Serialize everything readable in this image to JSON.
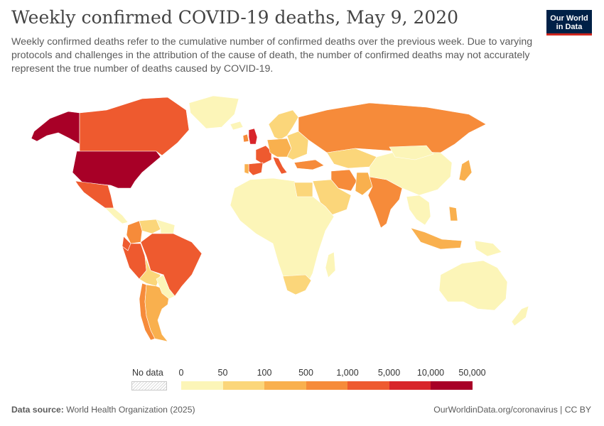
{
  "header": {
    "title": "Weekly confirmed COVID-19 deaths, May 9, 2020",
    "subtitle": "Weekly confirmed deaths refer to the cumulative number of confirmed deaths over the previous week. Due to varying protocols and challenges in the attribution of the cause of death, the number of confirmed deaths may not accurately represent the true number of deaths caused by COVID-19."
  },
  "logo": {
    "line1": "Our World",
    "line2": "in Data"
  },
  "legend": {
    "no_data_label": "No data",
    "ticks": [
      "0",
      "50",
      "100",
      "500",
      "1,000",
      "5,000",
      "10,000",
      "50,000"
    ],
    "colors": [
      "#fcf5b8",
      "#fbd67a",
      "#f9b04e",
      "#f68b3a",
      "#ee5a2f",
      "#d8252a",
      "#a80027"
    ]
  },
  "map": {
    "regions": [
      {
        "name": "Alaska",
        "color": "#a80027"
      },
      {
        "name": "Canada",
        "color": "#ee5a2f"
      },
      {
        "name": "United States",
        "color": "#a80027"
      },
      {
        "name": "Greenland",
        "color": "#fcf5b8"
      },
      {
        "name": "Mexico",
        "color": "#ee5a2f"
      },
      {
        "name": "Central America",
        "color": "#fcf5b8"
      },
      {
        "name": "Colombia",
        "color": "#f68b3a"
      },
      {
        "name": "Venezuela",
        "color": "#fbd67a"
      },
      {
        "name": "Guianas",
        "color": "#fcf5b8"
      },
      {
        "name": "Ecuador",
        "color": "#ee5a2f"
      },
      {
        "name": "Peru",
        "color": "#ee5a2f"
      },
      {
        "name": "Brazil",
        "color": "#ee5a2f"
      },
      {
        "name": "Bolivia",
        "color": "#fbd67a"
      },
      {
        "name": "Chile",
        "color": "#f68b3a"
      },
      {
        "name": "Argentina",
        "color": "#f9b04e"
      },
      {
        "name": "Uruguay and Paraguay",
        "color": "#fcf5b8"
      },
      {
        "name": "Iceland",
        "color": "#fcf5b8"
      },
      {
        "name": "Ireland",
        "color": "#f68b3a"
      },
      {
        "name": "United Kingdom",
        "color": "#d8252a"
      },
      {
        "name": "Scandinavia",
        "color": "#fbd67a"
      },
      {
        "name": "France",
        "color": "#ee5a2f"
      },
      {
        "name": "Spain",
        "color": "#ee5a2f"
      },
      {
        "name": "Portugal",
        "color": "#f9b04e"
      },
      {
        "name": "Italy",
        "color": "#ee5a2f"
      },
      {
        "name": "Central Europe",
        "color": "#f9b04e"
      },
      {
        "name": "Eastern Europe",
        "color": "#fbd67a"
      },
      {
        "name": "Russia",
        "color": "#f68b3a"
      },
      {
        "name": "Turkey",
        "color": "#f68b3a"
      },
      {
        "name": "Kazakhstan",
        "color": "#fbd67a"
      },
      {
        "name": "Iran",
        "color": "#f68b3a"
      },
      {
        "name": "Arabian Peninsula",
        "color": "#fbd67a"
      },
      {
        "name": "Pakistan",
        "color": "#f9b04e"
      },
      {
        "name": "India",
        "color": "#f68b3a"
      },
      {
        "name": "China",
        "color": "#fcf5b8"
      },
      {
        "name": "Mongolia",
        "color": "#fcf5b8"
      },
      {
        "name": "Japan",
        "color": "#f9b04e"
      },
      {
        "name": "Southeast Asia",
        "color": "#fcf5b8"
      },
      {
        "name": "Philippines",
        "color": "#f9b04e"
      },
      {
        "name": "Indonesia",
        "color": "#f9b04e"
      },
      {
        "name": "Papua New Guinea",
        "color": "#fcf5b8"
      },
      {
        "name": "Australia",
        "color": "#fcf5b8"
      },
      {
        "name": "New Zealand",
        "color": "#fcf5b8"
      },
      {
        "name": "Africa",
        "color": "#fcf5b8"
      },
      {
        "name": "Egypt",
        "color": "#fbd67a"
      },
      {
        "name": "South Africa",
        "color": "#fbd67a"
      },
      {
        "name": "Madagascar",
        "color": "#fcf5b8"
      }
    ]
  },
  "footer": {
    "source_label": "Data source:",
    "source_value": "World Health Organization (2025)",
    "credit": "OurWorldinData.org/coronavirus | CC BY"
  }
}
